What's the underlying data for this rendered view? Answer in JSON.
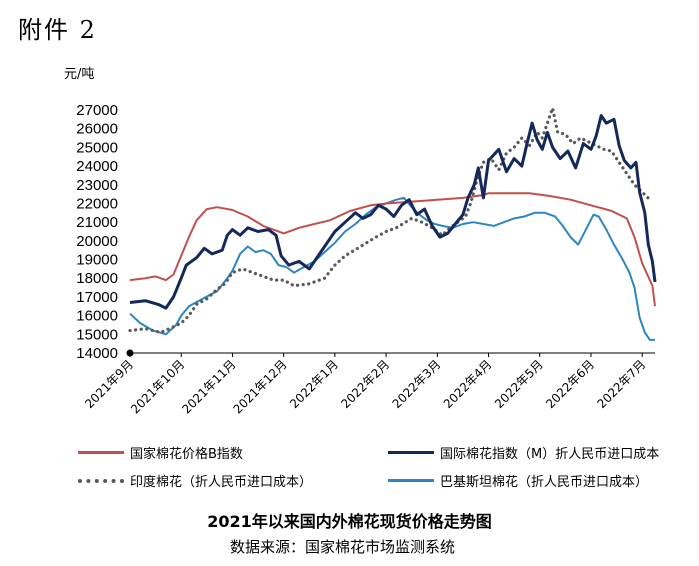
{
  "header": {
    "label": "附件 2"
  },
  "chart_data": {
    "type": "line",
    "title": "2021年以来国内外棉花现货价格走势图",
    "source": "数据来源：国家棉花市场监测系统",
    "ylabel": "元/吨",
    "ylim": [
      14000,
      27000
    ],
    "yticks": [
      14000,
      15000,
      16000,
      17000,
      18000,
      19000,
      20000,
      21000,
      22000,
      23000,
      24000,
      25000,
      26000,
      27000
    ],
    "x_range": [
      0,
      10.25
    ],
    "x_ticks": [
      {
        "x": 0,
        "label": "2021年9月"
      },
      {
        "x": 1,
        "label": "2021年10月"
      },
      {
        "x": 2,
        "label": "2021年11月"
      },
      {
        "x": 3,
        "label": "2021年12月"
      },
      {
        "x": 4,
        "label": "2022年1月"
      },
      {
        "x": 5,
        "label": "2022年2月"
      },
      {
        "x": 6,
        "label": "2022年3月"
      },
      {
        "x": 7,
        "label": "2022年4月"
      },
      {
        "x": 8,
        "label": "2022年5月"
      },
      {
        "x": 9,
        "label": "2022年6月"
      },
      {
        "x": 10,
        "label": "2022年7月"
      }
    ],
    "grid": false,
    "legend_position": "bottom",
    "series": [
      {
        "name": "国家棉花价格B指数",
        "color": "#c0504d",
        "style": "solid",
        "points": [
          [
            0,
            17900
          ],
          [
            0.3,
            18000
          ],
          [
            0.5,
            18100
          ],
          [
            0.7,
            17900
          ],
          [
            0.85,
            18200
          ],
          [
            1.0,
            19200
          ],
          [
            1.15,
            20200
          ],
          [
            1.3,
            21100
          ],
          [
            1.5,
            21700
          ],
          [
            1.7,
            21800
          ],
          [
            2.0,
            21650
          ],
          [
            2.3,
            21300
          ],
          [
            2.6,
            20800
          ],
          [
            2.8,
            20600
          ],
          [
            3.0,
            20400
          ],
          [
            3.3,
            20700
          ],
          [
            3.6,
            20900
          ],
          [
            3.9,
            21100
          ],
          [
            4.3,
            21600
          ],
          [
            4.7,
            21900
          ],
          [
            5.0,
            22000
          ],
          [
            5.5,
            22100
          ],
          [
            6.0,
            22200
          ],
          [
            6.5,
            22300
          ],
          [
            6.9,
            22450
          ],
          [
            7.0,
            22550
          ],
          [
            7.3,
            22550
          ],
          [
            7.8,
            22550
          ],
          [
            8.2,
            22400
          ],
          [
            8.6,
            22200
          ],
          [
            9.0,
            21900
          ],
          [
            9.4,
            21600
          ],
          [
            9.7,
            21200
          ],
          [
            9.85,
            20200
          ],
          [
            10.0,
            18800
          ],
          [
            10.1,
            18200
          ],
          [
            10.2,
            17600
          ],
          [
            10.25,
            16500
          ]
        ]
      },
      {
        "name": "国际棉花指数（M）折人民币进口成本",
        "color": "#14285a",
        "style": "solid",
        "points": [
          [
            0,
            16700
          ],
          [
            0.3,
            16800
          ],
          [
            0.55,
            16600
          ],
          [
            0.7,
            16400
          ],
          [
            0.85,
            17000
          ],
          [
            1.0,
            18000
          ],
          [
            1.1,
            18700
          ],
          [
            1.3,
            19100
          ],
          [
            1.45,
            19600
          ],
          [
            1.6,
            19300
          ],
          [
            1.8,
            19500
          ],
          [
            1.9,
            20300
          ],
          [
            2.0,
            20600
          ],
          [
            2.15,
            20300
          ],
          [
            2.3,
            20700
          ],
          [
            2.5,
            20500
          ],
          [
            2.7,
            20600
          ],
          [
            2.85,
            20300
          ],
          [
            2.95,
            19200
          ],
          [
            3.1,
            18700
          ],
          [
            3.3,
            18900
          ],
          [
            3.5,
            18500
          ],
          [
            3.7,
            19300
          ],
          [
            3.8,
            19700
          ],
          [
            4.0,
            20500
          ],
          [
            4.2,
            21000
          ],
          [
            4.4,
            21500
          ],
          [
            4.55,
            21200
          ],
          [
            4.7,
            21400
          ],
          [
            4.85,
            21900
          ],
          [
            5.0,
            21700
          ],
          [
            5.15,
            21300
          ],
          [
            5.3,
            21900
          ],
          [
            5.45,
            22200
          ],
          [
            5.6,
            21400
          ],
          [
            5.75,
            21700
          ],
          [
            5.9,
            20800
          ],
          [
            6.05,
            20200
          ],
          [
            6.2,
            20400
          ],
          [
            6.35,
            20900
          ],
          [
            6.5,
            21400
          ],
          [
            6.6,
            22300
          ],
          [
            6.72,
            23000
          ],
          [
            6.8,
            23900
          ],
          [
            6.9,
            22300
          ],
          [
            7.0,
            24300
          ],
          [
            7.2,
            24900
          ],
          [
            7.35,
            23700
          ],
          [
            7.5,
            24400
          ],
          [
            7.65,
            24000
          ],
          [
            7.75,
            25200
          ],
          [
            7.85,
            26300
          ],
          [
            7.95,
            25400
          ],
          [
            8.05,
            24900
          ],
          [
            8.15,
            25800
          ],
          [
            8.25,
            25000
          ],
          [
            8.4,
            24400
          ],
          [
            8.55,
            24800
          ],
          [
            8.7,
            23900
          ],
          [
            8.85,
            25200
          ],
          [
            9.0,
            24900
          ],
          [
            9.1,
            25600
          ],
          [
            9.2,
            26700
          ],
          [
            9.3,
            26300
          ],
          [
            9.45,
            26500
          ],
          [
            9.55,
            25100
          ],
          [
            9.65,
            24300
          ],
          [
            9.78,
            23900
          ],
          [
            9.88,
            24200
          ],
          [
            9.95,
            22600
          ],
          [
            10.05,
            21500
          ],
          [
            10.12,
            19800
          ],
          [
            10.2,
            18900
          ],
          [
            10.25,
            17800
          ]
        ]
      },
      {
        "name": "印度棉花（折人民币进口成本）",
        "color": "#595959",
        "style": "dotted",
        "points": [
          [
            0,
            15200
          ],
          [
            0.3,
            15300
          ],
          [
            0.6,
            15100
          ],
          [
            0.85,
            15400
          ],
          [
            1.0,
            15600
          ],
          [
            1.15,
            16000
          ],
          [
            1.3,
            16600
          ],
          [
            1.5,
            16900
          ],
          [
            1.7,
            17400
          ],
          [
            1.85,
            17700
          ],
          [
            2.0,
            18300
          ],
          [
            2.2,
            18500
          ],
          [
            2.4,
            18300
          ],
          [
            2.6,
            18100
          ],
          [
            2.8,
            17900
          ],
          [
            3.0,
            17900
          ],
          [
            3.2,
            17600
          ],
          [
            3.5,
            17700
          ],
          [
            3.8,
            18000
          ],
          [
            4.0,
            18700
          ],
          [
            4.2,
            19200
          ],
          [
            4.5,
            19700
          ],
          [
            4.8,
            20200
          ],
          [
            5.0,
            20500
          ],
          [
            5.2,
            20700
          ],
          [
            5.5,
            21200
          ],
          [
            5.7,
            21000
          ],
          [
            5.9,
            20700
          ],
          [
            6.1,
            20300
          ],
          [
            6.25,
            20700
          ],
          [
            6.4,
            21000
          ],
          [
            6.55,
            21300
          ],
          [
            6.65,
            22000
          ],
          [
            6.8,
            23500
          ],
          [
            6.9,
            24200
          ],
          [
            7.05,
            24400
          ],
          [
            7.2,
            23800
          ],
          [
            7.35,
            24700
          ],
          [
            7.5,
            25000
          ],
          [
            7.65,
            25500
          ],
          [
            7.8,
            25100
          ],
          [
            7.95,
            25800
          ],
          [
            8.05,
            25500
          ],
          [
            8.15,
            26300
          ],
          [
            8.25,
            27100
          ],
          [
            8.35,
            25800
          ],
          [
            8.5,
            25700
          ],
          [
            8.65,
            25200
          ],
          [
            8.8,
            25500
          ],
          [
            8.95,
            25300
          ],
          [
            9.1,
            25100
          ],
          [
            9.25,
            24900
          ],
          [
            9.4,
            24800
          ],
          [
            9.55,
            24200
          ],
          [
            9.7,
            23600
          ],
          [
            9.85,
            23000
          ],
          [
            10.0,
            22600
          ],
          [
            10.15,
            22200
          ]
        ]
      },
      {
        "name": "巴基斯坦棉花（折人民币进口成本）",
        "color": "#2e86c1",
        "style": "solid",
        "points": [
          [
            0,
            16100
          ],
          [
            0.2,
            15600
          ],
          [
            0.45,
            15200
          ],
          [
            0.7,
            15000
          ],
          [
            0.9,
            15500
          ],
          [
            1.0,
            16000
          ],
          [
            1.15,
            16500
          ],
          [
            1.35,
            16800
          ],
          [
            1.55,
            17100
          ],
          [
            1.7,
            17300
          ],
          [
            1.9,
            18000
          ],
          [
            2.0,
            18400
          ],
          [
            2.15,
            19300
          ],
          [
            2.3,
            19700
          ],
          [
            2.45,
            19400
          ],
          [
            2.6,
            19500
          ],
          [
            2.75,
            19300
          ],
          [
            2.9,
            18700
          ],
          [
            3.05,
            18600
          ],
          [
            3.2,
            18300
          ],
          [
            3.4,
            18600
          ],
          [
            3.6,
            18900
          ],
          [
            3.8,
            19400
          ],
          [
            4.0,
            19900
          ],
          [
            4.2,
            20500
          ],
          [
            4.4,
            20900
          ],
          [
            4.6,
            21400
          ],
          [
            4.8,
            21800
          ],
          [
            5.0,
            22000
          ],
          [
            5.2,
            22200
          ],
          [
            5.35,
            22300
          ],
          [
            5.5,
            21800
          ],
          [
            5.65,
            21400
          ],
          [
            5.8,
            21100
          ],
          [
            5.95,
            20900
          ],
          [
            6.1,
            20800
          ],
          [
            6.3,
            20700
          ],
          [
            6.5,
            20900
          ],
          [
            6.7,
            21000
          ],
          [
            6.9,
            20900
          ],
          [
            7.1,
            20800
          ],
          [
            7.3,
            21000
          ],
          [
            7.5,
            21200
          ],
          [
            7.7,
            21300
          ],
          [
            7.9,
            21500
          ],
          [
            8.1,
            21500
          ],
          [
            8.3,
            21300
          ],
          [
            8.45,
            20800
          ],
          [
            8.6,
            20200
          ],
          [
            8.75,
            19800
          ],
          [
            8.9,
            20600
          ],
          [
            9.05,
            21400
          ],
          [
            9.15,
            21300
          ],
          [
            9.3,
            20600
          ],
          [
            9.45,
            19800
          ],
          [
            9.6,
            19100
          ],
          [
            9.75,
            18300
          ],
          [
            9.85,
            17500
          ],
          [
            9.95,
            15900
          ],
          [
            10.05,
            15100
          ],
          [
            10.15,
            14700
          ],
          [
            10.25,
            14700
          ]
        ]
      }
    ]
  }
}
